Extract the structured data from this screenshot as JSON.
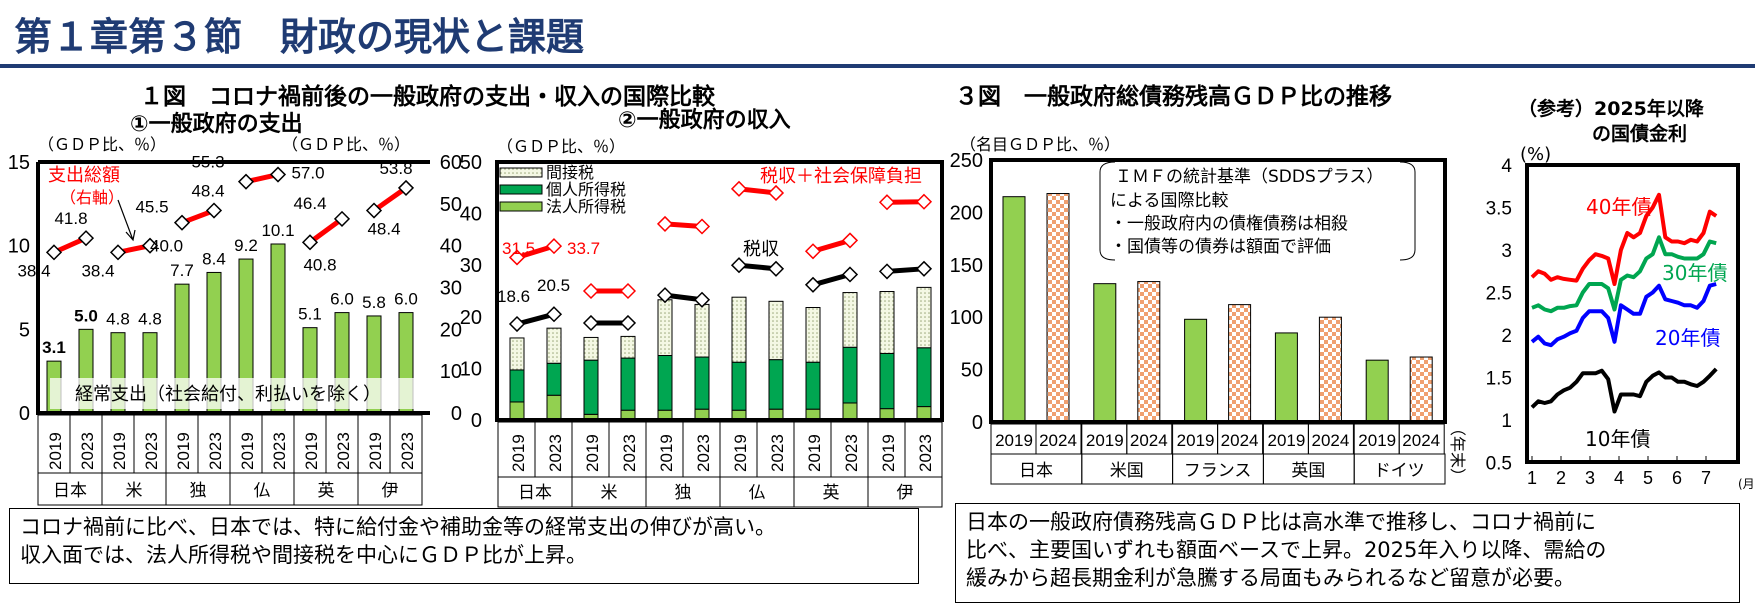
{
  "header": {
    "title": "第１章第３節　財政の現状と課題"
  },
  "fig1": {
    "title": "１図　コロナ禍前後の一般政府の支出・収入の国際比較",
    "sub1": {
      "title": "①一般政府の支出",
      "yunit_left": "（ＧＤＰ比、％）",
      "yunit_right": "（ＧＤＰ比、％）",
      "total_label": "支出総額",
      "total_sub": "（右軸）",
      "bar_label": "経常支出（社会給付、利払いを除く）"
    },
    "sub2": {
      "title": "②一般政府の収入",
      "yunit": "（ＧＤＰ比、％）",
      "total_label": "税収＋社会保障負担",
      "tax_label": "税収"
    }
  },
  "fig3": {
    "title": "３図　一般政府総債務残高ＧＤＰ比の推移",
    "yunit": "（名目ＧＤＰ比、％）",
    "note": [
      "ＩＭＦの統計基準（SDDSプラス）",
      "による国際比較",
      "・一般政府内の債権債務は相殺",
      "・国債等の債券は額面で評価"
    ],
    "year_unit": "（年末）"
  },
  "fig4": {
    "title_line1": "（参考）2025年以降",
    "title_line2": "の国債金利",
    "yunit": "(%)",
    "xunit": "(月)"
  },
  "notes": {
    "left": [
      "コロナ禍前に比べ、日本では、特に給付金や補助金等の経常支出の伸びが高い。",
      "収入面では、法人所得税や間接税を中心にＧＤＰ比が上昇。"
    ],
    "right": [
      "日本の一般政府債務残高ＧＤＰ比は高水準で推移し、コロナ禍前に",
      "比べ、主要国いずれも額面ベースで上昇。2025年入り以降、需給の",
      "緩みから超長期金利が急騰する局面もみられるなど留意が必要。"
    ]
  },
  "colors": {
    "title": "#1f3b73",
    "bar_green": "#92d050",
    "dark_green": "#00a651",
    "red": "#ff0000",
    "orange": "#f4b183",
    "blue": "#0000ff",
    "green_line": "#00a650"
  },
  "chart_data": [
    {
      "type": "bar",
      "title": "①一般政府の支出",
      "countries": [
        "日本",
        "米",
        "独",
        "仏",
        "英",
        "伊"
      ],
      "years": [
        "2019",
        "2023"
      ],
      "ylim_left": [
        0,
        15
      ],
      "yticks_left": [
        "0",
        "5",
        "10",
        "15"
      ],
      "ylim_right": [
        0,
        60
      ],
      "yticks_right": [
        "0",
        "10",
        "20",
        "30",
        "40",
        "50",
        "60"
      ],
      "series": [
        {
          "name": "経常支出（社会給付、利払いを除く）",
          "axis": "left",
          "values": [
            3.1,
            5.0,
            4.8,
            4.8,
            7.7,
            8.4,
            9.2,
            10.1,
            5.1,
            6.0,
            5.8,
            6.0
          ]
        },
        {
          "name": "支出総額（右軸）",
          "axis": "right",
          "type": "line",
          "values": [
            38.4,
            41.8,
            38.4,
            40.0,
            45.5,
            48.4,
            55.3,
            57.0,
            40.8,
            46.4,
            48.4,
            53.8
          ]
        }
      ]
    },
    {
      "type": "bar",
      "stacked": true,
      "title": "②一般政府の収入",
      "countries": [
        "日本",
        "米",
        "独",
        "仏",
        "英",
        "伊"
      ],
      "years": [
        "2019",
        "2023"
      ],
      "ylim": [
        0,
        50
      ],
      "yticks": [
        "0",
        "10",
        "20",
        "30",
        "40",
        "50"
      ],
      "legend": [
        "間接税",
        "個人所得税",
        "法人所得税"
      ],
      "series": [
        {
          "name": "法人所得税",
          "values": [
            3.5,
            4.8,
            1.1,
            1.9,
            1.9,
            2.1,
            1.9,
            2.1,
            2.1,
            3.3,
            2.2,
            2.6
          ]
        },
        {
          "name": "個人所得税",
          "values": [
            6.2,
            6.2,
            10.5,
            10.1,
            10.6,
            10.1,
            9.3,
            9.6,
            9.1,
            10.8,
            10.7,
            11.4
          ]
        },
        {
          "name": "間接税",
          "values": [
            6.2,
            6.8,
            4.4,
            4.2,
            10.8,
            10.2,
            12.6,
            11.3,
            10.6,
            10.6,
            12.0,
            11.7
          ]
        },
        {
          "name": "税収",
          "type": "line",
          "values": [
            18.6,
            20.5,
            18.8,
            18.8,
            24.2,
            23.3,
            30.0,
            29.3,
            26.2,
            28.2,
            28.8,
            29.3
          ]
        },
        {
          "name": "税収＋社会保障負担",
          "type": "line",
          "values": [
            31.5,
            33.7,
            25.0,
            25.0,
            38.0,
            37.5,
            44.8,
            44.0,
            32.7,
            34.8,
            42.2,
            42.3
          ]
        }
      ]
    },
    {
      "type": "bar",
      "title": "３図　一般政府総債務残高ＧＤＰ比の推移",
      "countries": [
        "日本",
        "米国",
        "フランス",
        "英国",
        "ドイツ"
      ],
      "years": [
        "2019",
        "2024"
      ],
      "ylim": [
        0,
        250
      ],
      "yticks": [
        "0",
        "50",
        "100",
        "150",
        "200",
        "250"
      ],
      "series": [
        {
          "name": "2019",
          "values": [
            215,
            132,
            98,
            85,
            59
          ]
        },
        {
          "name": "2024",
          "values": [
            218,
            134,
            112,
            100,
            62
          ]
        }
      ]
    },
    {
      "type": "line",
      "title": "（参考）2025年以降の国債金利",
      "xlim": [
        1,
        7.35
      ],
      "xticks": [
        "1",
        "2",
        "3",
        "4",
        "5",
        "6",
        "7"
      ],
      "ylim": [
        0.5,
        4
      ],
      "yticks": [
        "0.5",
        "1",
        "1.5",
        "2",
        "2.5",
        "3",
        "3.5",
        "4"
      ],
      "series": [
        {
          "name": "40年債",
          "color": "#ff0000",
          "values": [
            2.68,
            2.75,
            2.72,
            2.65,
            2.68,
            2.66,
            2.65,
            2.64,
            2.78,
            2.88,
            2.95,
            2.93,
            2.9,
            2.6,
            3.0,
            3.2,
            3.15,
            3.2,
            3.4,
            3.5,
            3.65,
            3.15,
            3.1,
            3.1,
            3.08,
            3.12,
            3.1,
            3.2,
            3.45,
            3.4
          ]
        },
        {
          "name": "30年債",
          "color": "#00a650",
          "values": [
            2.32,
            2.35,
            2.3,
            2.28,
            2.32,
            2.32,
            2.34,
            2.35,
            2.5,
            2.6,
            2.6,
            2.6,
            2.55,
            2.3,
            2.65,
            2.7,
            2.68,
            2.75,
            2.9,
            2.95,
            3.15,
            2.95,
            2.95,
            2.92,
            2.9,
            2.9,
            2.9,
            2.95,
            3.1,
            3.08
          ]
        },
        {
          "name": "20年債",
          "color": "#0000ff",
          "values": [
            1.92,
            1.98,
            1.9,
            1.88,
            1.95,
            1.98,
            2.02,
            2.05,
            2.2,
            2.28,
            2.28,
            2.28,
            2.2,
            1.92,
            2.35,
            2.3,
            2.25,
            2.25,
            2.45,
            2.5,
            2.58,
            2.42,
            2.4,
            2.38,
            2.35,
            2.35,
            2.32,
            2.4,
            2.58,
            2.6
          ]
        },
        {
          "name": "10年債",
          "color": "#000000",
          "values": [
            1.15,
            1.22,
            1.2,
            1.22,
            1.3,
            1.35,
            1.38,
            1.45,
            1.55,
            1.55,
            1.55,
            1.58,
            1.48,
            1.1,
            1.3,
            1.3,
            1.3,
            1.28,
            1.45,
            1.52,
            1.56,
            1.5,
            1.5,
            1.45,
            1.45,
            1.42,
            1.4,
            1.45,
            1.52,
            1.6
          ]
        }
      ]
    }
  ]
}
